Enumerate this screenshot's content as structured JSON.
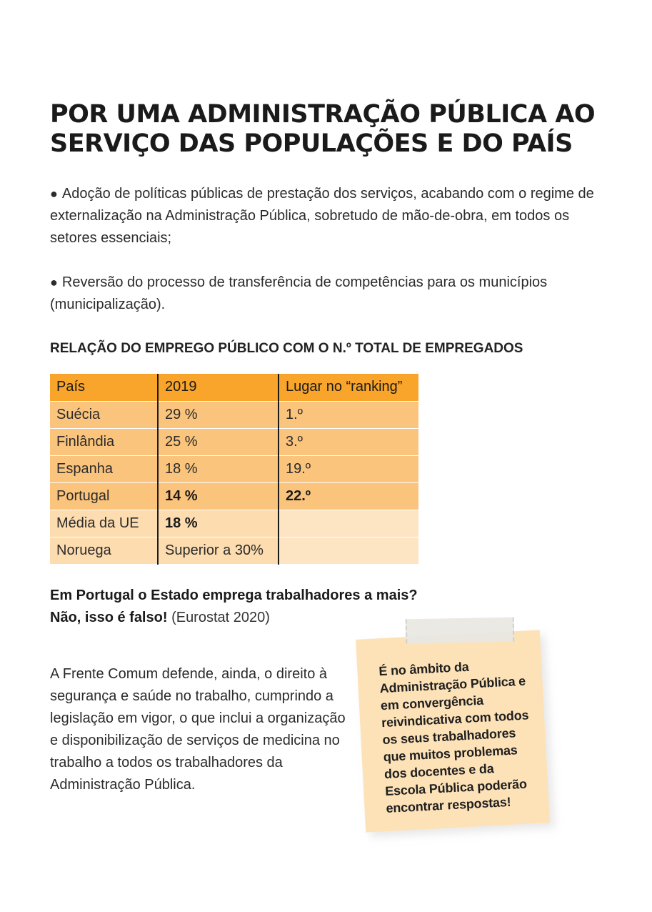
{
  "title_line1": "POR UMA ADMINISTRAÇÃO PÚBLICA AO",
  "title_line2": "SERVIÇO DAS POPULAÇÕES E DO PAÍS",
  "bullet_glyph": "●",
  "bullets": [
    "Adoção de políticas públicas de prestação dos serviços, acabando com o regime de externalização na Administração Pública, sobretudo de mão-de-obra, em todos os setores essenciais;",
    "Reversão do processo de transferência de competências para os municípios (municipalização)."
  ],
  "table_title": "RELAÇÃO DO EMPREGO PÚBLICO COM O N.º TOTAL DE EMPREGADOS",
  "table": {
    "headers": [
      "País",
      "2019",
      "Lugar no “ranking”"
    ],
    "rows": [
      [
        "Suécia",
        "29 %",
        "1.º"
      ],
      [
        "Finlândia",
        "25 %",
        "3.º"
      ],
      [
        "Espanha",
        "18 %",
        "19.º"
      ],
      [
        "Portugal",
        "14 %",
        "22.º"
      ],
      [
        "Média da UE",
        "18 %",
        ""
      ],
      [
        "Noruega",
        "Superior a 30%",
        ""
      ]
    ]
  },
  "question": "Em Portugal o Estado emprega trabalhadores a mais?",
  "answer_strong": "Não, isso é falso!",
  "answer_source": "(Eurostat 2020)",
  "paragraph": "A Frente Comum defende, ainda, o direito à segurança e saúde no trabalho, cumprindo a legislação em vigor, o que inclui a organização e disponibilização de serviços de medicina no trabalho a todos os trabalhadores da Administração Pública.",
  "sticky_note": "É no âmbito da Administração Pública e em convergência reivindicativa com todos os seus trabalhadores que muitos problemas dos docentes e da Escola Pública poderão encontrar respostas!",
  "colors": {
    "table_header": "#f9a42a",
    "table_row": "#fbc47c",
    "table_row_light": "#fddcaf",
    "sticky_note": "#fde2b8"
  }
}
